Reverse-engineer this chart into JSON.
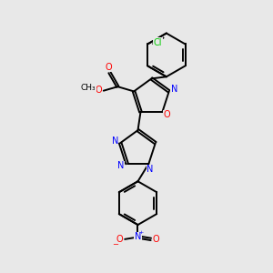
{
  "bg_color": "#e8e8e8",
  "bond_color": "#000000",
  "n_color": "#0000ff",
  "o_color": "#ff0000",
  "cl_color": "#00cc00",
  "figsize": [
    3.0,
    3.0
  ],
  "dpi": 100,
  "xlim": [
    0,
    10
  ],
  "ylim": [
    0,
    10
  ]
}
